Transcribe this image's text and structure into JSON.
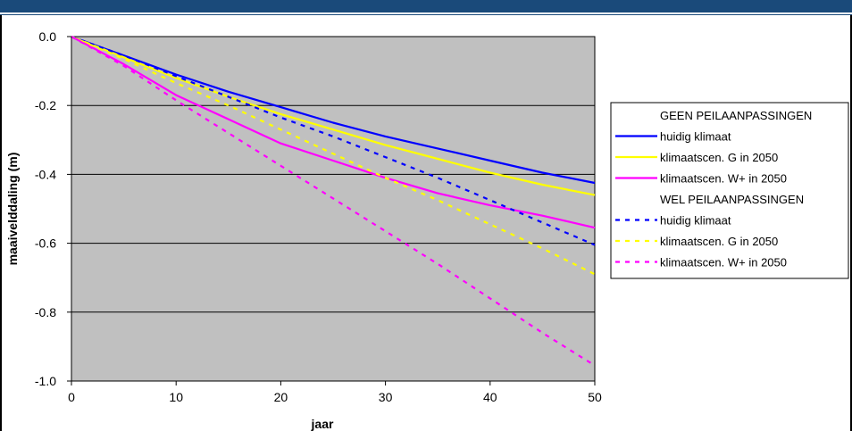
{
  "chart_data": {
    "type": "line",
    "xlabel": "jaar",
    "ylabel": "maaivelddaling (m)",
    "xlim": [
      0,
      50
    ],
    "ylim": [
      -1.0,
      0.0
    ],
    "x_ticks": [
      "0",
      "10",
      "20",
      "30",
      "40",
      "50"
    ],
    "y_ticks": [
      "0.0",
      "-0.2",
      "-0.4",
      "-0.6",
      "-0.8",
      "-1.0"
    ],
    "grid": true,
    "plot_background": "#c0c0c0",
    "legend_position": "right",
    "legend_headers": [
      "GEEN PEILAANPASSINGEN",
      "WEL PEILAANPASSINGEN"
    ],
    "x": [
      0,
      5,
      10,
      15,
      20,
      25,
      30,
      35,
      40,
      45,
      50
    ],
    "series": [
      {
        "name": "huidig klimaat",
        "group": "GEEN PEILAANPASSINGEN",
        "color": "#0000ff",
        "style": "solid",
        "values": [
          0,
          -0.055,
          -0.11,
          -0.16,
          -0.205,
          -0.25,
          -0.29,
          -0.325,
          -0.36,
          -0.395,
          -0.425
        ]
      },
      {
        "name": "klimaatscen. G in 2050",
        "group": "GEEN PEILAANPASSINGEN",
        "color": "#ffff00",
        "style": "solid",
        "values": [
          0,
          -0.06,
          -0.12,
          -0.175,
          -0.225,
          -0.27,
          -0.315,
          -0.355,
          -0.395,
          -0.43,
          -0.46
        ]
      },
      {
        "name": "klimaatscen. W+ in 2050",
        "group": "GEEN PEILAANPASSINGEN",
        "color": "#ff00ff",
        "style": "solid",
        "values": [
          0,
          -0.08,
          -0.17,
          -0.24,
          -0.31,
          -0.36,
          -0.41,
          -0.455,
          -0.49,
          -0.52,
          -0.555
        ]
      },
      {
        "name": "huidig klimaat",
        "group": "WEL PEILAANPASSINGEN",
        "color": "#0000ff",
        "style": "dashed",
        "values": [
          0,
          -0.055,
          -0.115,
          -0.175,
          -0.235,
          -0.29,
          -0.35,
          -0.41,
          -0.475,
          -0.54,
          -0.605
        ]
      },
      {
        "name": "klimaatscen. G in 2050",
        "group": "WEL PEILAANPASSINGEN",
        "color": "#ffff00",
        "style": "dashed",
        "values": [
          0,
          -0.065,
          -0.135,
          -0.2,
          -0.27,
          -0.34,
          -0.41,
          -0.475,
          -0.545,
          -0.615,
          -0.69
        ]
      },
      {
        "name": "klimaatscen. W+ in 2050",
        "group": "WEL PEILAANPASSINGEN",
        "color": "#ff00ff",
        "style": "dashed",
        "values": [
          0,
          -0.085,
          -0.185,
          -0.28,
          -0.375,
          -0.47,
          -0.565,
          -0.66,
          -0.76,
          -0.86,
          -0.955
        ]
      }
    ]
  }
}
